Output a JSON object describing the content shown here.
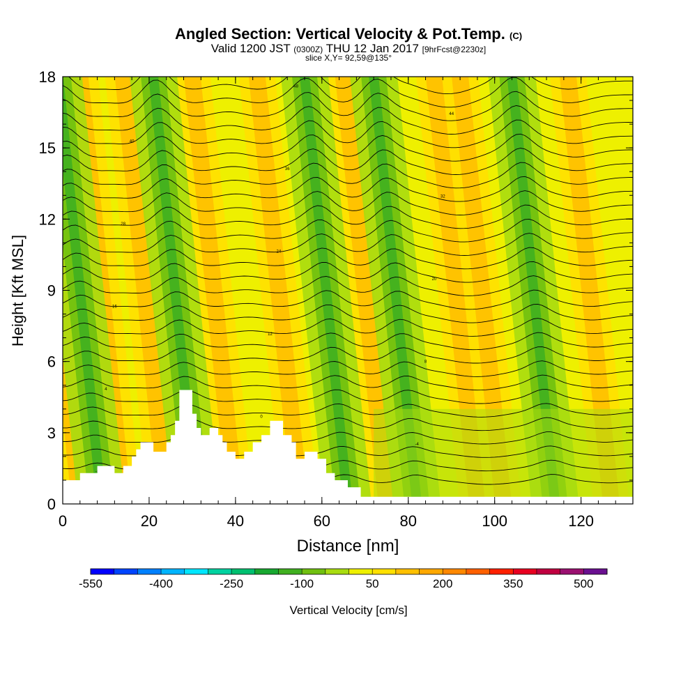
{
  "header": {
    "title": "Angled Section: Vertical Velocity & Pot.Temp.",
    "title_units": "(C)",
    "valid_prefix": "Valid 1200 JST",
    "valid_utc": "(0300Z)",
    "valid_date": "THU 12 Jan 2017",
    "forecast": "[9hrFcst@2230z]",
    "slice": "slice X,Y= 92,59@135°"
  },
  "chart_data": {
    "type": "heatmap",
    "xlabel": "Distance [nm]",
    "ylabel": "Height [Kft MSL]",
    "xlim": [
      0,
      132
    ],
    "ylim": [
      0,
      18
    ],
    "xticks": [
      "0",
      "20",
      "40",
      "60",
      "80",
      "100",
      "120"
    ],
    "yticks": [
      "0",
      "3",
      "6",
      "9",
      "12",
      "15",
      "18"
    ],
    "colorbar": {
      "label": "Vertical Velocity [cm/s]",
      "tick_labels": [
        "-550",
        "-400",
        "-250",
        "-100",
        "50",
        "200",
        "350",
        "500"
      ],
      "colors": [
        "#0000ff",
        "#0044ff",
        "#0080ff",
        "#00b4ff",
        "#00e6ff",
        "#00d2a0",
        "#00c070",
        "#18a830",
        "#40b020",
        "#70c010",
        "#a8dc10",
        "#eef000",
        "#ffe000",
        "#ffc000",
        "#ffa800",
        "#ff8800",
        "#ff6000",
        "#ff2000",
        "#e80020",
        "#c00040",
        "#9a1070",
        "#6a1090"
      ]
    },
    "updraft_bands_x": [
      4,
      14,
      24,
      40,
      55,
      75,
      96,
      102,
      127
    ],
    "downdraft_bands_x": [
      9,
      31,
      66,
      82,
      114
    ],
    "terrain": [
      [
        0,
        1.0
      ],
      [
        4,
        1.0
      ],
      [
        4,
        1.3
      ],
      [
        8,
        1.3
      ],
      [
        8,
        1.6
      ],
      [
        12,
        1.6
      ],
      [
        12,
        1.3
      ],
      [
        14,
        1.3
      ],
      [
        14,
        1.6
      ],
      [
        16,
        1.6
      ],
      [
        16,
        2.0
      ],
      [
        17,
        2.0
      ],
      [
        17,
        2.3
      ],
      [
        18,
        2.3
      ],
      [
        18,
        2.6
      ],
      [
        21,
        2.6
      ],
      [
        21,
        2.2
      ],
      [
        24,
        2.2
      ],
      [
        24,
        2.6
      ],
      [
        25,
        2.6
      ],
      [
        25,
        2.9
      ],
      [
        26,
        2.9
      ],
      [
        26,
        3.5
      ],
      [
        27,
        3.5
      ],
      [
        27,
        4.8
      ],
      [
        30,
        4.8
      ],
      [
        30,
        3.8
      ],
      [
        31,
        3.8
      ],
      [
        31,
        3.2
      ],
      [
        32,
        3.2
      ],
      [
        32,
        2.9
      ],
      [
        34,
        2.9
      ],
      [
        34,
        3.2
      ],
      [
        36,
        3.2
      ],
      [
        36,
        2.9
      ],
      [
        37,
        2.9
      ],
      [
        37,
        2.6
      ],
      [
        38,
        2.6
      ],
      [
        38,
        2.2
      ],
      [
        40,
        2.2
      ],
      [
        40,
        1.9
      ],
      [
        42,
        1.9
      ],
      [
        42,
        2.2
      ],
      [
        44,
        2.2
      ],
      [
        44,
        2.6
      ],
      [
        46,
        2.6
      ],
      [
        46,
        2.9
      ],
      [
        48,
        2.9
      ],
      [
        48,
        3.5
      ],
      [
        51,
        3.5
      ],
      [
        51,
        2.9
      ],
      [
        53,
        2.9
      ],
      [
        53,
        2.6
      ],
      [
        54,
        2.6
      ],
      [
        54,
        1.9
      ],
      [
        56,
        1.9
      ],
      [
        56,
        2.2
      ],
      [
        59,
        2.2
      ],
      [
        59,
        1.9
      ],
      [
        61,
        1.9
      ],
      [
        61,
        1.3
      ],
      [
        63,
        1.3
      ],
      [
        63,
        1.0
      ],
      [
        66,
        1.0
      ],
      [
        66,
        0.7
      ],
      [
        69,
        0.7
      ],
      [
        69,
        0.3
      ],
      [
        132,
        0.3
      ]
    ],
    "contour_labels": [
      "-8",
      "-6",
      "-4",
      "-2",
      "0",
      "2",
      "4",
      "6",
      "8",
      "10",
      "12",
      "14",
      "16",
      "18",
      "20",
      "22",
      "24",
      "26",
      "28",
      "30",
      "32",
      "34",
      "36",
      "38",
      "40",
      "42",
      "44",
      "46",
      "48",
      "50"
    ]
  }
}
